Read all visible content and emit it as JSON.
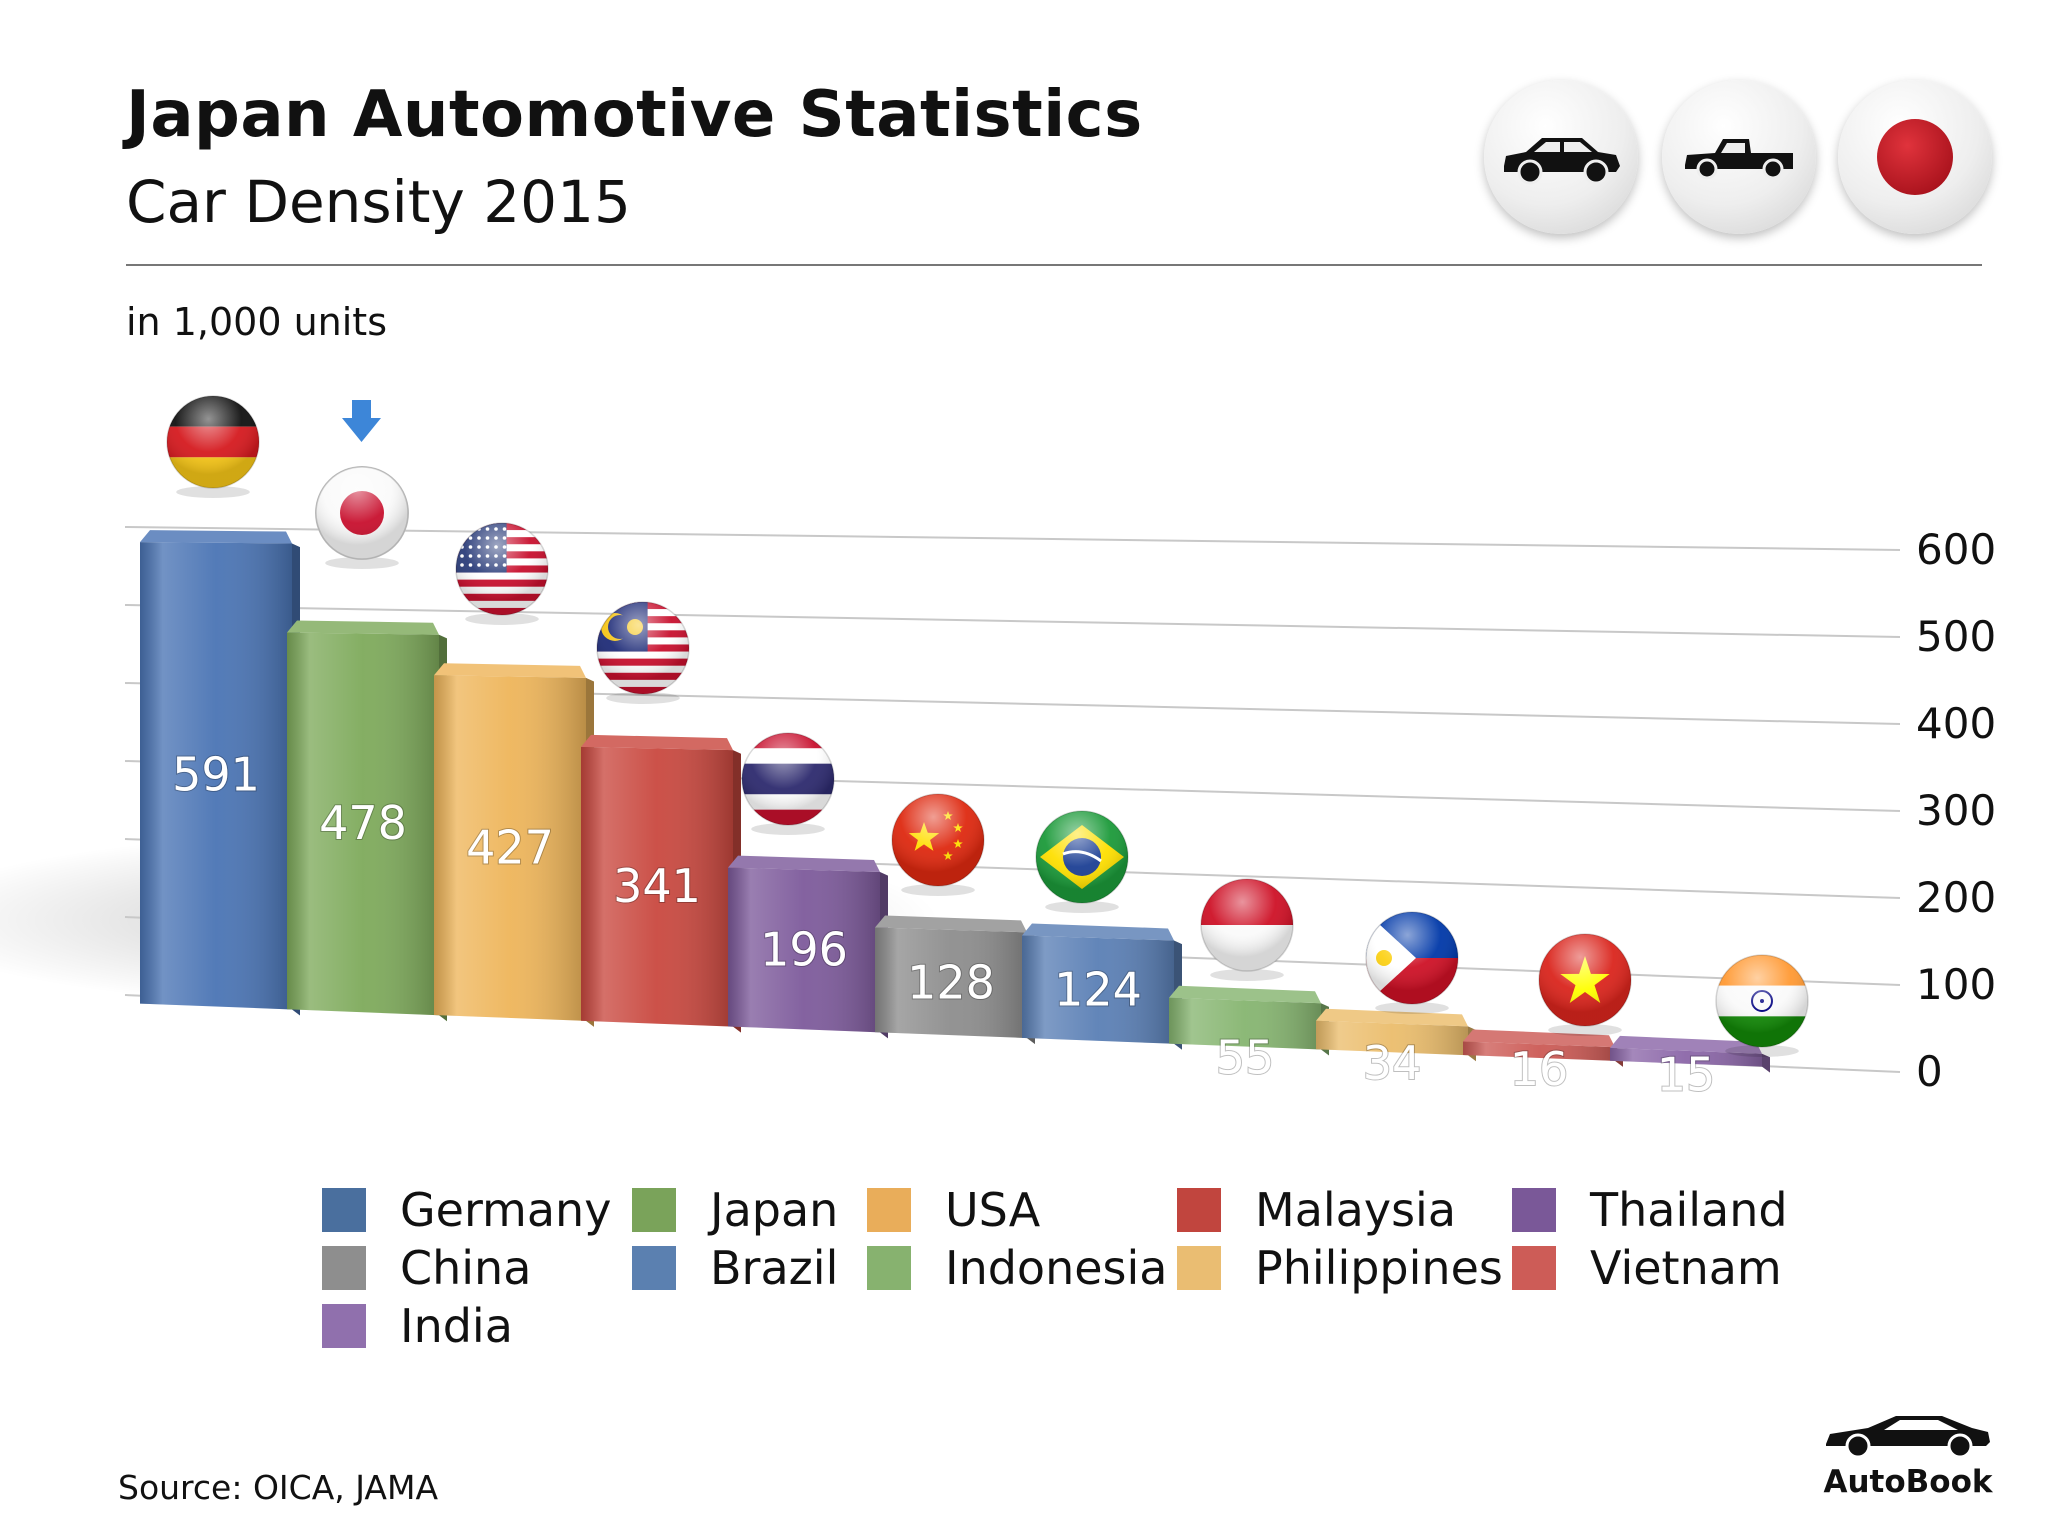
{
  "header": {
    "title": "Japan Automotive Statistics",
    "subtitle": "Car Density 2015",
    "units": "in 1,000 units"
  },
  "badges": [
    {
      "icon": "sedan-car-icon"
    },
    {
      "icon": "pickup-truck-icon"
    },
    {
      "icon": "japan-flag-icon"
    }
  ],
  "chart_data": {
    "type": "bar",
    "title": "Car Density 2015",
    "ylabel": "in 1,000 units",
    "ylim": [
      0,
      600
    ],
    "yticks": [
      "600",
      "500",
      "400",
      "300",
      "200",
      "100",
      "0"
    ],
    "categories": [
      "Germany",
      "Japan",
      "USA",
      "Malaysia",
      "Thailand",
      "China",
      "Brazil",
      "Indonesia",
      "Philippines",
      "Vietnam",
      "India"
    ],
    "values": [
      591,
      478,
      427,
      341,
      196,
      128,
      124,
      55,
      34,
      16,
      15
    ],
    "labels": [
      "591",
      "478",
      "427",
      "341",
      "196",
      "128",
      "124",
      "55",
      "34",
      "16",
      "15"
    ],
    "colors": [
      "#4a74b4",
      "#7eaa5b",
      "#eeb55a",
      "#c9483f",
      "#7d5a9b",
      "#8d8d8d",
      "#5a7fb5",
      "#86b570",
      "#ebbd6c",
      "#cc5a55",
      "#8b66a8"
    ],
    "highlight": "Japan",
    "flags": [
      "germany-flag-icon",
      "japan-flag-icon",
      "usa-flag-icon",
      "malaysia-flag-icon",
      "thailand-flag-icon",
      "china-flag-icon",
      "brazil-flag-icon",
      "indonesia-flag-icon",
      "philippines-flag-icon",
      "vietnam-flag-icon",
      "india-flag-icon"
    ]
  },
  "legend": [
    {
      "label": "Germany",
      "color": "#4a6f9e"
    },
    {
      "label": "Japan",
      "color": "#7aa35a"
    },
    {
      "label": "USA",
      "color": "#e9ad5a"
    },
    {
      "label": "Malaysia",
      "color": "#c1453e"
    },
    {
      "label": "Thailand",
      "color": "#7a5898"
    },
    {
      "label": "China",
      "color": "#8e8e8e"
    },
    {
      "label": "Brazil",
      "color": "#5b80b0"
    },
    {
      "label": "Indonesia",
      "color": "#87b26f"
    },
    {
      "label": "Philippines",
      "color": "#eabd72"
    },
    {
      "label": "Vietnam",
      "color": "#cd5c57"
    },
    {
      "label": "India",
      "color": "#9070ad"
    }
  ],
  "footer": {
    "source": "Source:  OICA, JAMA",
    "brand": "AutoBook"
  }
}
